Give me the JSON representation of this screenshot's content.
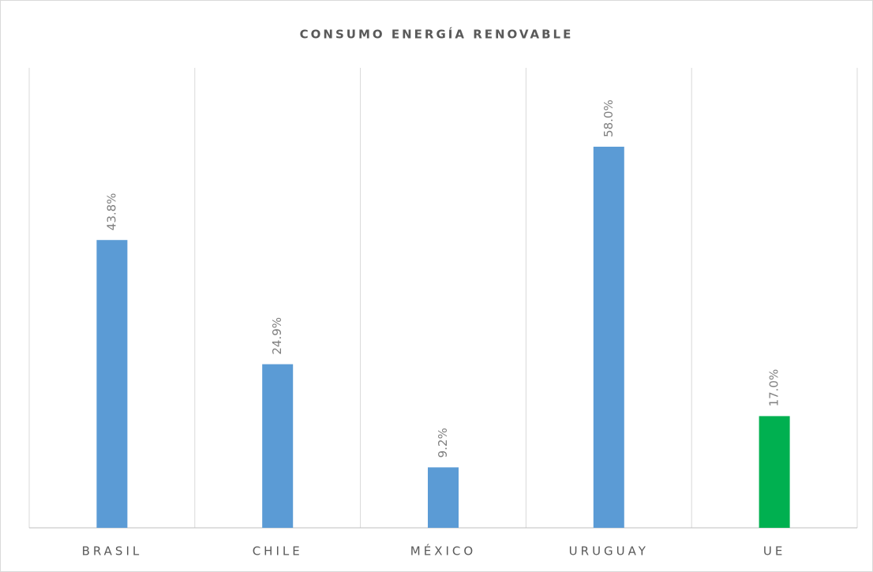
{
  "chart_data": {
    "type": "bar",
    "title": "CONSUMO ENERGÍA RENOVABLE",
    "categories": [
      "BRASIL",
      "CHILE",
      "MÉXICO",
      "URUGUAY",
      "UE"
    ],
    "values": [
      43.8,
      24.9,
      9.2,
      58.0,
      17.0
    ],
    "value_labels": [
      "43.8%",
      "24.9%",
      "9.2%",
      "58.0%",
      "17.0%"
    ],
    "colors": [
      "#5b9bd5",
      "#5b9bd5",
      "#5b9bd5",
      "#5b9bd5",
      "#00b050"
    ],
    "ylim": [
      0,
      70
    ]
  }
}
